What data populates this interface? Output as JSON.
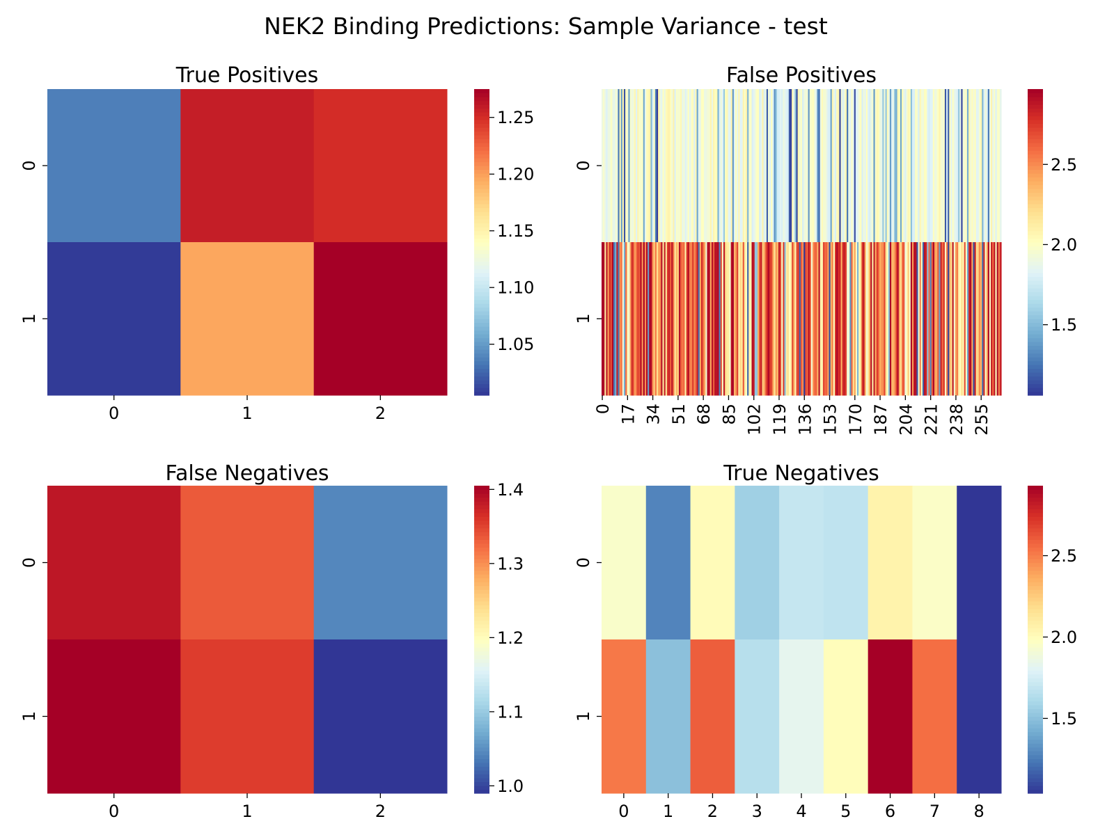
{
  "title": "NEK2 Binding Predictions: Sample Variance - test",
  "chart_data": [
    {
      "type": "heatmap",
      "title": "True Positives",
      "xlabel": "",
      "ylabel": "",
      "colormap": "RdYlBu_r",
      "rows": [
        "0",
        "1"
      ],
      "cols": [
        "0",
        "1",
        "2"
      ],
      "values": [
        [
          1.037,
          1.258,
          1.25
        ],
        [
          1.007,
          1.197,
          1.275
        ]
      ],
      "vmin": 1.005,
      "vmax": 1.275,
      "colorbar_ticks": [
        "1.05",
        "1.10",
        "1.15",
        "1.20",
        "1.25"
      ],
      "grid": false
    },
    {
      "type": "heatmap",
      "title": "False Positives",
      "xlabel": "",
      "ylabel": "",
      "colormap": "RdYlBu_r",
      "rows": [
        "0",
        "1"
      ],
      "n_cols": 269,
      "x_tick_labels": [
        "0",
        "17",
        "34",
        "51",
        "68",
        "85",
        "102",
        "119",
        "136",
        "153",
        "170",
        "187",
        "204",
        "221",
        "238",
        "255"
      ],
      "x_tick_step": 17,
      "value_summary": {
        "row_0_typical": 1.95,
        "row_0_range": [
          1.06,
          2.1
        ],
        "row_1_typical": 2.55,
        "row_1_range": [
          1.06,
          2.97
        ]
      },
      "vmin": 1.06,
      "vmax": 2.97,
      "colorbar_ticks": [
        "1.5",
        "2.0",
        "2.5"
      ],
      "grid": false
    },
    {
      "type": "heatmap",
      "title": "False Negatives",
      "xlabel": "",
      "ylabel": "",
      "colormap": "RdYlBu_r",
      "rows": [
        "0",
        "1"
      ],
      "cols": [
        "0",
        "1",
        "2"
      ],
      "values": [
        [
          1.385,
          1.335,
          1.045
        ],
        [
          1.405,
          1.355,
          0.99
        ]
      ],
      "vmin": 0.99,
      "vmax": 1.405,
      "colorbar_ticks": [
        "1.0",
        "1.1",
        "1.2",
        "1.3",
        "1.4"
      ],
      "grid": false
    },
    {
      "type": "heatmap",
      "title": "True Negatives",
      "xlabel": "",
      "ylabel": "",
      "colormap": "RdYlBu_r",
      "rows": [
        "0",
        "1"
      ],
      "cols": [
        "0",
        "1",
        "2",
        "3",
        "4",
        "5",
        "6",
        "7",
        "8"
      ],
      "values": [
        [
          1.95,
          1.28,
          2.01,
          1.57,
          1.7,
          1.68,
          2.06,
          1.96,
          1.04
        ],
        [
          2.52,
          1.5,
          2.6,
          1.65,
          1.83,
          2.0,
          2.93,
          2.55,
          1.04
        ]
      ],
      "vmin": 1.04,
      "vmax": 2.93,
      "colorbar_ticks": [
        "1.5",
        "2.0",
        "2.5"
      ],
      "grid": false
    }
  ]
}
